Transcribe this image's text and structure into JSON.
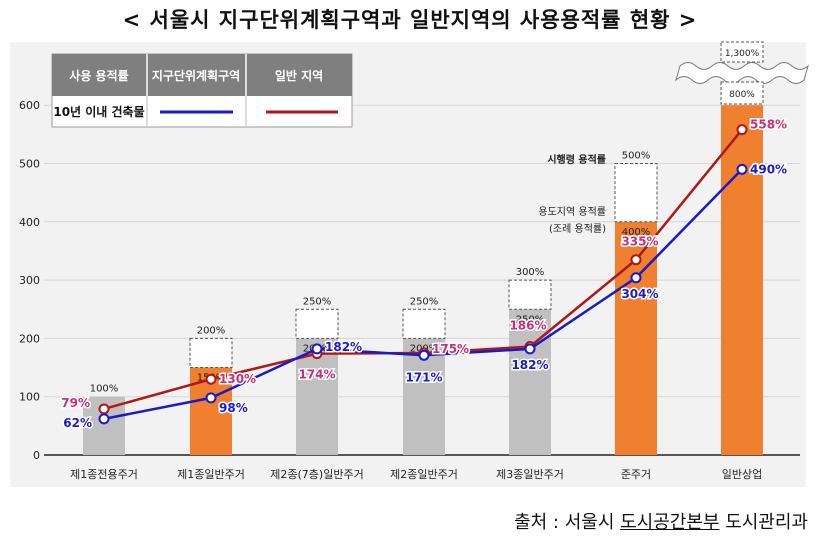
{
  "title": "< 서울시 지구단위계획구역과 일반지역의 사용용적률 현황 >",
  "source": {
    "prefix": "출처 : 서울시 ",
    "org": "도시공간본부",
    "dept": " 도시관리과"
  },
  "colors": {
    "district_line": "#1a1ac8",
    "general_line": "#b01818",
    "zoning_bar": "#c0c0c0",
    "commercial_bar": "#f07f2f",
    "district_label": "#1a1acf",
    "general_label": "#cc2e7a"
  },
  "legend": {
    "header_usage": "사용 용적률",
    "header_district": "지구단위계획구역",
    "header_general": "일반 지역",
    "row_label": "10년 이내 건축물"
  },
  "annotations": {
    "enforce_far": "시행령 용적률",
    "zoning_far": "용도지역 용적률",
    "ordinance": "(조례 용적률)"
  },
  "chart_data": {
    "type": "bar",
    "ylim": [
      0,
      600
    ],
    "yticks": [
      "0",
      "100",
      "200",
      "300",
      "400",
      "500",
      "600"
    ],
    "grid": true,
    "categories": [
      "제1종전용주거",
      "제1종일반주거",
      "제2종(7층)일반주거",
      "제2종일반주거",
      "제3종일반주거",
      "준주거",
      "일반상업"
    ],
    "bar_colors": [
      "gray",
      "orange",
      "gray",
      "gray",
      "gray",
      "orange",
      "orange"
    ],
    "ordinance_far": [
      100,
      150,
      200,
      200,
      250,
      400,
      800
    ],
    "ordinance_labels": [
      "100%",
      "150%",
      "200%",
      "200%",
      "250%",
      "400%",
      "800%"
    ],
    "max_far": [
      null,
      200,
      250,
      250,
      300,
      500,
      1300
    ],
    "max_labels": [
      "",
      "200%",
      "250%",
      "250%",
      "300%",
      "500%",
      "1,300%"
    ],
    "series": [
      {
        "name": "지구단위계획구역",
        "values": [
          62,
          98,
          182,
          171,
          182,
          304,
          490
        ],
        "labels": [
          "62%",
          "98%",
          "182%",
          "171%",
          "182%",
          "304%",
          "490%"
        ]
      },
      {
        "name": "일반 지역",
        "values": [
          79,
          130,
          174,
          175,
          186,
          335,
          558
        ],
        "labels": [
          "79%",
          "130%",
          "174%",
          "175%",
          "186%",
          "335%",
          "558%"
        ]
      }
    ]
  }
}
